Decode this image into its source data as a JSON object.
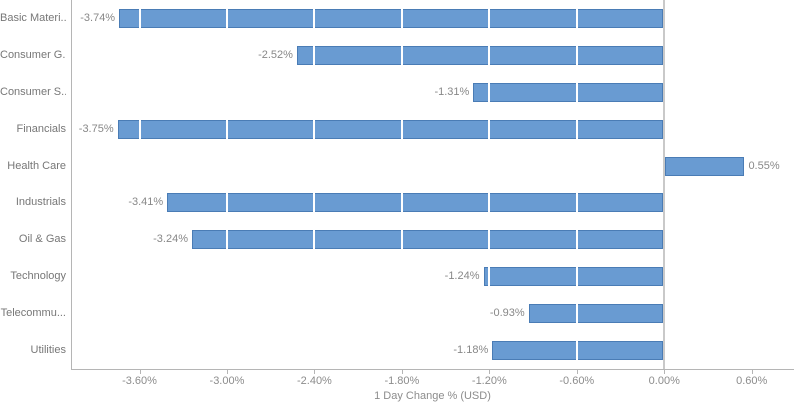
{
  "chart_data": {
    "type": "bar",
    "orientation": "horizontal",
    "title": "",
    "xlabel": "1 Day Change % (USD)",
    "ylabel": "",
    "categories": [
      "Basic Materi...",
      "Consumer G...",
      "Consumer S...",
      "Financials",
      "Health Care",
      "Industrials",
      "Oil & Gas",
      "Technology",
      "Telecommu...",
      "Utilities"
    ],
    "values": [
      -3.74,
      -2.52,
      -1.31,
      -3.75,
      0.55,
      -3.41,
      -3.24,
      -1.24,
      -0.93,
      -1.18
    ],
    "value_labels": [
      "-3.74%",
      "-2.52%",
      "-1.31%",
      "-3.75%",
      "0.55%",
      "-3.41%",
      "-3.24%",
      "-1.24%",
      "-0.93%",
      "-1.18%"
    ],
    "x_ticks": [
      -3.6,
      -3.0,
      -2.4,
      -1.8,
      -1.2,
      -0.6,
      0.0,
      0.6
    ],
    "x_tick_labels": [
      "-3.60%",
      "-3.00%",
      "-2.40%",
      "-1.80%",
      "-1.20%",
      "-0.60%",
      "0.00%",
      "0.60%"
    ],
    "xlim": [
      -4.07,
      0.89
    ],
    "legend": "none",
    "grid": "white vertical gridlines over bars at each tick; gray full-height line at zero",
    "colors": {
      "bar_fill": "#699BD2",
      "bar_border": "#4A7CB5",
      "axis_line": "#b5b5b5",
      "zero_line": "#c9c9c9",
      "category_text": "#777777",
      "value_text": "#888888",
      "tick_text": "#8c8c8c",
      "background": "#ffffff"
    }
  }
}
